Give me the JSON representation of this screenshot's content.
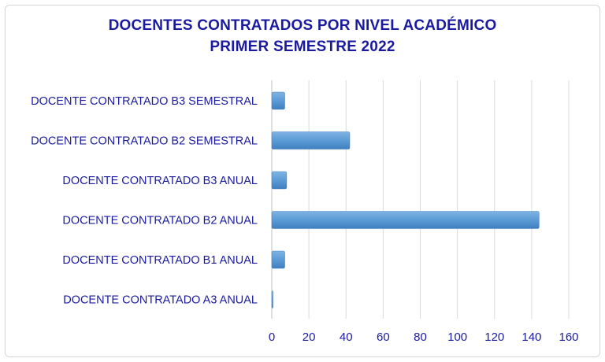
{
  "chart_data": {
    "type": "bar",
    "orientation": "horizontal",
    "title_line1": "DOCENTES CONTRATADOS POR NIVEL ACADÉMICO",
    "title_line2": "PRIMER SEMESTRE 2022",
    "categories": [
      "DOCENTE CONTRATADO B3 SEMESTRAL",
      "DOCENTE CONTRATADO B2 SEMESTRAL",
      "DOCENTE CONTRATADO B3 ANUAL",
      "DOCENTE CONTRATADO B2 ANUAL",
      "DOCENTE CONTRATADO B1 ANUAL",
      "DOCENTE CONTRATADO A3 ANUAL"
    ],
    "values": [
      7,
      42,
      8,
      144,
      7,
      0
    ],
    "xlim": [
      0,
      160
    ],
    "xticks": [
      0,
      20,
      40,
      60,
      80,
      100,
      120,
      140,
      160
    ],
    "grid": true,
    "legend": "none",
    "bar_color": "#5b9bd5",
    "text_color": "#1a1aa0"
  }
}
